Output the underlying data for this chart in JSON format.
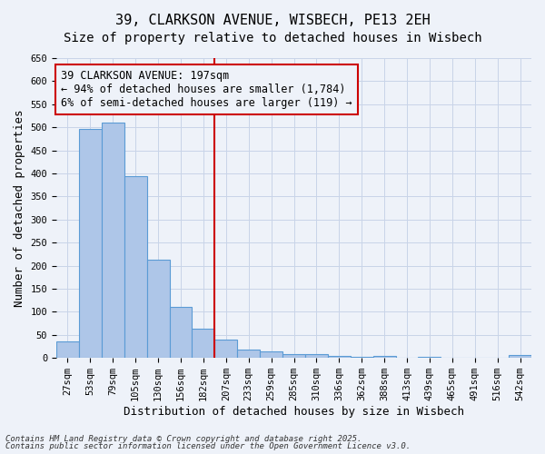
{
  "title": "39, CLARKSON AVENUE, WISBECH, PE13 2EH",
  "subtitle": "Size of property relative to detached houses in Wisbech",
  "xlabel": "Distribution of detached houses by size in Wisbech",
  "ylabel": "Number of detached properties",
  "bar_labels": [
    "27sqm",
    "53sqm",
    "79sqm",
    "105sqm",
    "130sqm",
    "156sqm",
    "182sqm",
    "207sqm",
    "233sqm",
    "259sqm",
    "285sqm",
    "310sqm",
    "336sqm",
    "362sqm",
    "388sqm",
    "413sqm",
    "439sqm",
    "465sqm",
    "491sqm",
    "516sqm",
    "542sqm"
  ],
  "bar_values": [
    35,
    497,
    510,
    395,
    213,
    111,
    63,
    40,
    19,
    14,
    8,
    8,
    5,
    3,
    4,
    1,
    2,
    1,
    0,
    0,
    7
  ],
  "bar_color": "#aec6e8",
  "bar_edgecolor": "#5b9bd5",
  "vline_x": 7,
  "vline_color": "#cc0000",
  "annotation_text": "39 CLARKSON AVENUE: 197sqm\n← 94% of detached houses are smaller (1,784)\n6% of semi-detached houses are larger (119) →",
  "annotation_box_color": "#cc0000",
  "ylim": [
    0,
    650
  ],
  "yticks": [
    0,
    50,
    100,
    150,
    200,
    250,
    300,
    350,
    400,
    450,
    500,
    550,
    600,
    650
  ],
  "footer1": "Contains HM Land Registry data © Crown copyright and database right 2025.",
  "footer2": "Contains public sector information licensed under the Open Government Licence v3.0.",
  "bg_color": "#eef2f9",
  "grid_color": "#c8d4e8",
  "title_fontsize": 11,
  "subtitle_fontsize": 10,
  "axis_label_fontsize": 9,
  "tick_fontsize": 7.5,
  "annotation_fontsize": 8.5,
  "footer_fontsize": 6.5
}
